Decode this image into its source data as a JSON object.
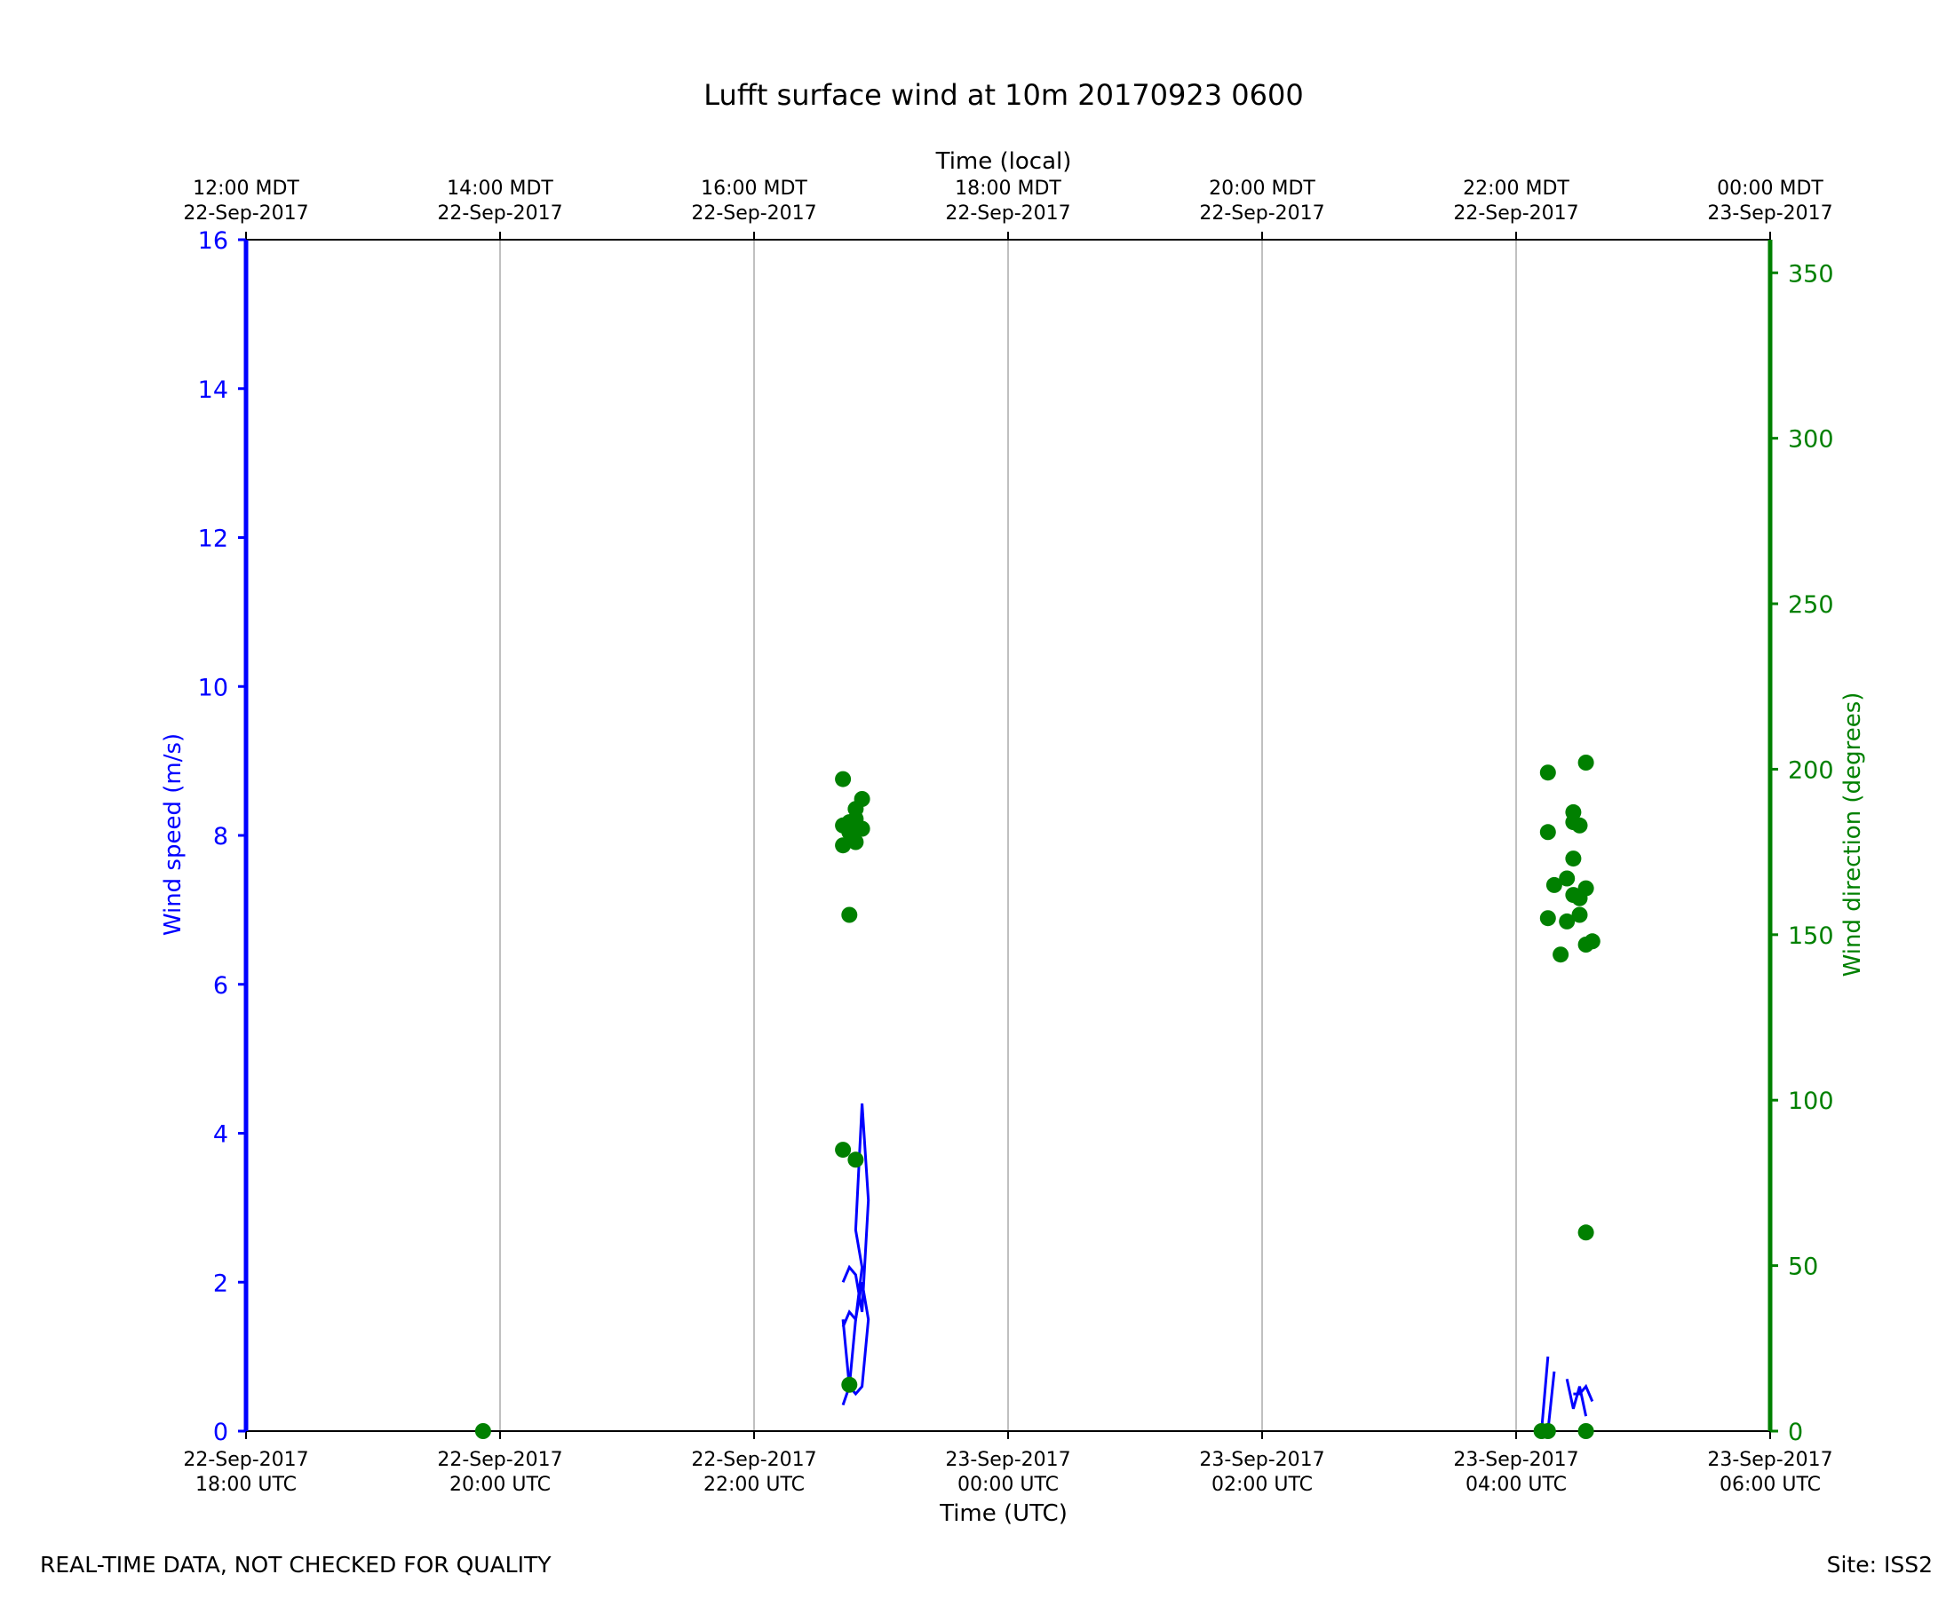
{
  "chart_data": {
    "type": "line+scatter",
    "title": "Lufft surface wind at 10m 20170923 0600",
    "xlabel": "Time (UTC)",
    "xlabel_top": "Time (local)",
    "ylabel_left": "Wind speed (m/s)",
    "ylabel_right": "Wind direction (degrees)",
    "xlim": [
      "2017-09-22 18:00",
      "2017-09-23 06:00"
    ],
    "ylim_left": [
      0,
      16
    ],
    "ylim_right": [
      0,
      360
    ],
    "grid": "vertical only",
    "colors": {
      "speed": "#0000ff",
      "direction": "#008000",
      "grid": "#b0b0b0",
      "axis": "#000000"
    },
    "x_ticks_bottom": [
      {
        "date": "22-Sep-2017",
        "time": "18:00 UTC"
      },
      {
        "date": "22-Sep-2017",
        "time": "20:00 UTC"
      },
      {
        "date": "22-Sep-2017",
        "time": "22:00 UTC"
      },
      {
        "date": "23-Sep-2017",
        "time": "00:00 UTC"
      },
      {
        "date": "23-Sep-2017",
        "time": "02:00 UTC"
      },
      {
        "date": "23-Sep-2017",
        "time": "04:00 UTC"
      },
      {
        "date": "23-Sep-2017",
        "time": "06:00 UTC"
      }
    ],
    "x_ticks_top": [
      {
        "time": "12:00 MDT",
        "date": "22-Sep-2017"
      },
      {
        "time": "14:00 MDT",
        "date": "22-Sep-2017"
      },
      {
        "time": "16:00 MDT",
        "date": "22-Sep-2017"
      },
      {
        "time": "18:00 MDT",
        "date": "22-Sep-2017"
      },
      {
        "time": "20:00 MDT",
        "date": "22-Sep-2017"
      },
      {
        "time": "22:00 MDT",
        "date": "22-Sep-2017"
      },
      {
        "time": "00:00 MDT",
        "date": "23-Sep-2017"
      }
    ],
    "y_ticks_left": [
      "0",
      "2",
      "4",
      "6",
      "8",
      "10",
      "12",
      "14",
      "16"
    ],
    "y_ticks_right": [
      "0",
      "50",
      "100",
      "150",
      "200",
      "250",
      "300",
      "350"
    ],
    "wind_speed_segments": [
      [
        [
          "2017-09-22 22:42",
          0.35
        ],
        [
          "2017-09-22 22:45",
          0.6
        ],
        [
          "2017-09-22 22:48",
          1.5
        ],
        [
          "2017-09-22 22:51",
          2.2
        ],
        [
          "2017-09-22 22:48",
          2.7
        ],
        [
          "2017-09-22 22:51",
          4.4
        ],
        [
          "2017-09-22 22:54",
          3.1
        ],
        [
          "2017-09-22 22:51",
          1.6
        ],
        [
          "2017-09-22 22:48",
          2.1
        ],
        [
          "2017-09-22 22:45",
          2.2
        ],
        [
          "2017-09-22 22:42",
          2.0
        ]
      ],
      [
        [
          "2017-09-22 22:42",
          1.5
        ],
        [
          "2017-09-22 22:45",
          0.6
        ],
        [
          "2017-09-22 22:48",
          0.5
        ],
        [
          "2017-09-22 22:51",
          0.6
        ],
        [
          "2017-09-22 22:54",
          1.5
        ],
        [
          "2017-09-22 22:51",
          2.0
        ],
        [
          "2017-09-22 22:48",
          1.5
        ],
        [
          "2017-09-22 22:45",
          1.6
        ],
        [
          "2017-09-22 22:42",
          1.4
        ]
      ],
      [
        [
          "2017-09-23 04:12",
          0.0
        ],
        [
          "2017-09-23 04:15",
          1.0
        ]
      ],
      [
        [
          "2017-09-23 04:15",
          0.0
        ],
        [
          "2017-09-23 04:18",
          0.8
        ]
      ],
      [
        [
          "2017-09-23 04:24",
          0.7
        ],
        [
          "2017-09-23 04:27",
          0.3
        ],
        [
          "2017-09-23 04:30",
          0.6
        ],
        [
          "2017-09-23 04:33",
          0.2
        ]
      ],
      [
        [
          "2017-09-23 04:27",
          0.5
        ],
        [
          "2017-09-23 04:30",
          0.5
        ],
        [
          "2017-09-23 04:33",
          0.6
        ],
        [
          "2017-09-23 04:36",
          0.4
        ]
      ]
    ],
    "wind_direction_points": [
      [
        "2017-09-22 19:52",
        0
      ],
      [
        "2017-09-22 22:42",
        197
      ],
      [
        "2017-09-22 22:42",
        183
      ],
      [
        "2017-09-22 22:42",
        177
      ],
      [
        "2017-09-22 22:42",
        85
      ],
      [
        "2017-09-22 22:45",
        184
      ],
      [
        "2017-09-22 22:45",
        181
      ],
      [
        "2017-09-22 22:45",
        156
      ],
      [
        "2017-09-22 22:45",
        14
      ],
      [
        "2017-09-22 22:48",
        188
      ],
      [
        "2017-09-22 22:48",
        185
      ],
      [
        "2017-09-22 22:48",
        182
      ],
      [
        "2017-09-22 22:48",
        178
      ],
      [
        "2017-09-22 22:48",
        82
      ],
      [
        "2017-09-22 22:51",
        191
      ],
      [
        "2017-09-22 22:51",
        182
      ],
      [
        "2017-09-23 04:12",
        0
      ],
      [
        "2017-09-23 04:15",
        199
      ],
      [
        "2017-09-23 04:15",
        181
      ],
      [
        "2017-09-23 04:15",
        155
      ],
      [
        "2017-09-23 04:15",
        0
      ],
      [
        "2017-09-23 04:18",
        165
      ],
      [
        "2017-09-23 04:21",
        144
      ],
      [
        "2017-09-23 04:24",
        167
      ],
      [
        "2017-09-23 04:24",
        154
      ],
      [
        "2017-09-23 04:27",
        187
      ],
      [
        "2017-09-23 04:27",
        184
      ],
      [
        "2017-09-23 04:27",
        173
      ],
      [
        "2017-09-23 04:27",
        162
      ],
      [
        "2017-09-23 04:30",
        183
      ],
      [
        "2017-09-23 04:30",
        161
      ],
      [
        "2017-09-23 04:30",
        156
      ],
      [
        "2017-09-23 04:33",
        202
      ],
      [
        "2017-09-23 04:33",
        164
      ],
      [
        "2017-09-23 04:33",
        147
      ],
      [
        "2017-09-23 04:33",
        60
      ],
      [
        "2017-09-23 04:33",
        0
      ],
      [
        "2017-09-23 04:36",
        148
      ]
    ]
  },
  "footer": {
    "note": "REAL-TIME DATA, NOT CHECKED FOR QUALITY",
    "site": "Site: ISS2"
  }
}
